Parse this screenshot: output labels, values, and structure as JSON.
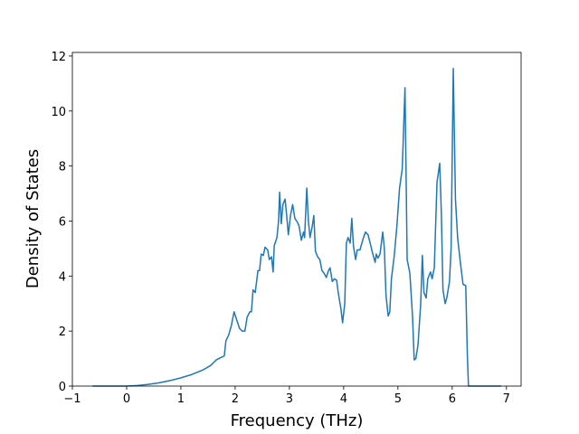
{
  "chart_data": {
    "type": "line",
    "xlabel": "Frequency (THz)",
    "ylabel": "Density of States",
    "xlim": [
      -1,
      7.27
    ],
    "ylim": [
      0,
      12.13
    ],
    "xticks": [
      {
        "value": -1,
        "label": "−1"
      },
      0,
      1,
      2,
      3,
      4,
      5,
      6,
      7
    ],
    "yticks": [
      0,
      2,
      4,
      6,
      8,
      10,
      12
    ],
    "grid": false,
    "series": [
      {
        "color": "#1f77b4",
        "x": [
          -0.63,
          0,
          0.2,
          0.4,
          0.6,
          0.8,
          1.0,
          1.2,
          1.4,
          1.55,
          1.65,
          1.75,
          1.8,
          1.83,
          1.88,
          1.93,
          1.98,
          2.03,
          2.08,
          2.13,
          2.18,
          2.22,
          2.27,
          2.3,
          2.33,
          2.37,
          2.42,
          2.45,
          2.48,
          2.52,
          2.55,
          2.6,
          2.63,
          2.67,
          2.7,
          2.72,
          2.77,
          2.8,
          2.82,
          2.85,
          2.88,
          2.92,
          2.95,
          2.98,
          3.02,
          3.06,
          3.1,
          3.15,
          3.18,
          3.22,
          3.26,
          3.28,
          3.32,
          3.35,
          3.38,
          3.42,
          3.45,
          3.48,
          3.52,
          3.56,
          3.6,
          3.64,
          3.68,
          3.72,
          3.75,
          3.79,
          3.83,
          3.87,
          3.9,
          3.95,
          3.98,
          4.02,
          4.05,
          4.08,
          4.12,
          4.15,
          4.18,
          4.22,
          4.25,
          4.3,
          4.35,
          4.4,
          4.45,
          4.5,
          4.53,
          4.58,
          4.6,
          4.63,
          4.67,
          4.72,
          4.75,
          4.78,
          4.82,
          4.85,
          4.88,
          4.93,
          4.98,
          5.03,
          5.08,
          5.13,
          5.17,
          5.22,
          5.27,
          5.3,
          5.33,
          5.37,
          5.42,
          5.45,
          5.48,
          5.52,
          5.55,
          5.6,
          5.63,
          5.67,
          5.72,
          5.77,
          5.8,
          5.83,
          5.87,
          5.9,
          5.95,
          5.98,
          6.02,
          6.06,
          6.1,
          6.15,
          6.2,
          6.25,
          6.28,
          6.3,
          6.9
        ],
        "values": [
          0,
          0,
          0.02,
          0.06,
          0.12,
          0.2,
          0.3,
          0.42,
          0.58,
          0.75,
          0.95,
          1.05,
          1.1,
          1.65,
          1.85,
          2.2,
          2.7,
          2.4,
          2.1,
          2.0,
          2.0,
          2.5,
          2.7,
          2.7,
          3.5,
          3.4,
          4.2,
          4.2,
          4.8,
          4.75,
          5.05,
          4.95,
          4.6,
          4.7,
          4.15,
          5.1,
          5.4,
          6.0,
          7.05,
          5.9,
          6.6,
          6.8,
          6.2,
          5.5,
          6.2,
          6.6,
          6.1,
          5.95,
          5.8,
          5.3,
          5.6,
          5.4,
          7.2,
          6.0,
          5.4,
          5.8,
          6.2,
          4.9,
          4.7,
          4.6,
          4.2,
          4.1,
          3.95,
          4.2,
          4.3,
          3.8,
          3.9,
          3.85,
          3.4,
          2.8,
          2.3,
          3.0,
          5.2,
          5.4,
          5.2,
          6.1,
          5.1,
          4.6,
          4.95,
          4.95,
          5.3,
          5.6,
          5.5,
          5.1,
          4.85,
          4.5,
          4.8,
          4.65,
          4.8,
          5.6,
          5.0,
          3.3,
          2.55,
          2.7,
          3.9,
          4.7,
          5.8,
          7.2,
          7.9,
          10.85,
          4.6,
          4.1,
          2.5,
          0.95,
          1.0,
          1.5,
          3.0,
          4.75,
          3.4,
          3.2,
          3.9,
          4.15,
          3.9,
          4.3,
          7.4,
          8.1,
          6.3,
          3.5,
          3.0,
          3.2,
          3.8,
          5.0,
          11.55,
          6.8,
          5.4,
          4.5,
          3.7,
          3.65,
          1.1,
          0,
          0
        ]
      }
    ]
  }
}
